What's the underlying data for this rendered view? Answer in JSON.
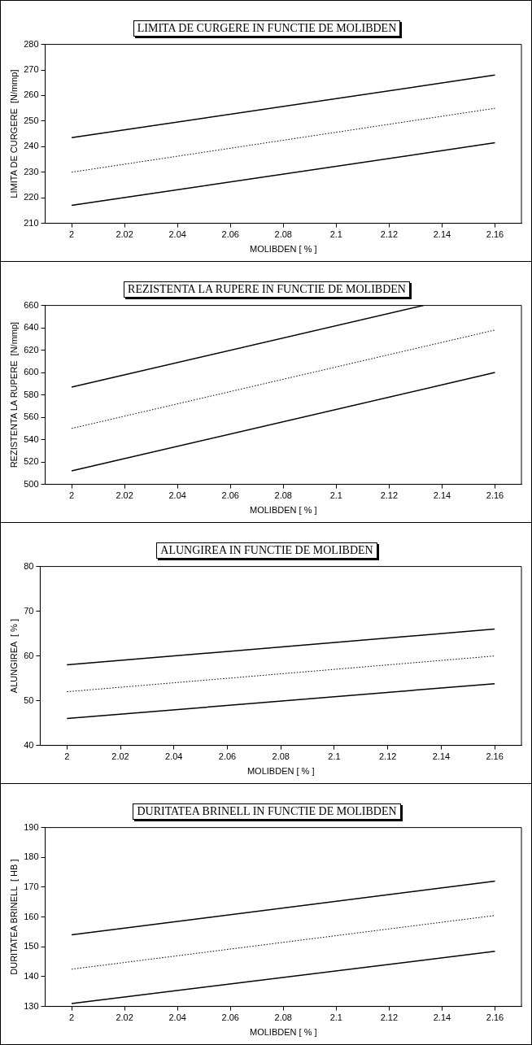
{
  "chart_data": [
    {
      "type": "line",
      "title": "LIMITA DE CURGERE IN FUNCTIE DE MOLIBDEN",
      "xlabel": "MOLIBDEN [ % ]",
      "ylabel": "LIMITA DE CURGERE  [N/mmp]",
      "xlim": [
        1.99,
        2.17
      ],
      "xticks": [
        2,
        2.02,
        2.04,
        2.06,
        2.08,
        2.1,
        2.12,
        2.14,
        2.16
      ],
      "ylim": [
        210,
        280
      ],
      "yticks": [
        210,
        220,
        230,
        240,
        250,
        260,
        270,
        280
      ],
      "series": [
        {
          "color": "#000000",
          "line_style": "solid",
          "x": [
            2,
            2.16
          ],
          "values": [
            243.5,
            268
          ]
        },
        {
          "color": "#000000",
          "line_style": "dotted",
          "x": [
            2,
            2.16
          ],
          "values": [
            230,
            255
          ]
        },
        {
          "color": "#000000",
          "line_style": "solid",
          "x": [
            2,
            2.16
          ],
          "values": [
            217,
            241.5
          ]
        }
      ]
    },
    {
      "type": "line",
      "title": "REZISTENTA LA RUPERE  IN FUNCTIE DE MOLIBDEN",
      "xlabel": "MOLIBDEN [ % ]",
      "ylabel": "REZISTENTA LA RUPERE  [N/mmp]",
      "xlim": [
        1.99,
        2.17
      ],
      "xticks": [
        2,
        2.02,
        2.04,
        2.06,
        2.08,
        2.1,
        2.12,
        2.14,
        2.16
      ],
      "ylim": [
        500,
        660
      ],
      "yticks": [
        500,
        520,
        540,
        560,
        580,
        600,
        620,
        640,
        660
      ],
      "series": [
        {
          "color": "#000000",
          "line_style": "solid",
          "x": [
            2,
            2.133
          ],
          "values": [
            587,
            660
          ]
        },
        {
          "color": "#000000",
          "line_style": "dotted",
          "x": [
            2,
            2.16
          ],
          "values": [
            550,
            638
          ]
        },
        {
          "color": "#000000",
          "line_style": "solid",
          "x": [
            2,
            2.16
          ],
          "values": [
            512,
            600
          ]
        }
      ]
    },
    {
      "type": "line",
      "title": "ALUNGIREA  IN FUNCTIE DE MOLIBDEN",
      "xlabel": "MOLIBDEN [ % ]",
      "ylabel": "ALUNGIREA  [ % ]",
      "xlim": [
        1.99,
        2.17
      ],
      "xticks": [
        2,
        2.02,
        2.04,
        2.06,
        2.08,
        2.1,
        2.12,
        2.14,
        2.16
      ],
      "ylim": [
        40,
        80
      ],
      "yticks": [
        40,
        50,
        60,
        70,
        80
      ],
      "series": [
        {
          "color": "#000000",
          "line_style": "solid",
          "x": [
            2,
            2.16
          ],
          "values": [
            58,
            66
          ]
        },
        {
          "color": "#000000",
          "line_style": "dotted",
          "x": [
            2,
            2.16
          ],
          "values": [
            52,
            60
          ]
        },
        {
          "color": "#000000",
          "line_style": "solid",
          "x": [
            2,
            2.16
          ],
          "values": [
            46,
            53.8
          ]
        }
      ]
    },
    {
      "type": "line",
      "title": "DURITATEA BRINELL IN FUNCTIE DE MOLIBDEN",
      "xlabel": "MOLIBDEN [ % ]",
      "ylabel": "DURITATEA BRINELL  [ HB ]",
      "xlim": [
        1.99,
        2.17
      ],
      "xticks": [
        2,
        2.02,
        2.04,
        2.06,
        2.08,
        2.1,
        2.12,
        2.14,
        2.16
      ],
      "ylim": [
        130,
        190
      ],
      "yticks": [
        130,
        140,
        150,
        160,
        170,
        180,
        190
      ],
      "series": [
        {
          "color": "#000000",
          "line_style": "solid",
          "x": [
            2,
            2.16
          ],
          "values": [
            154,
            172
          ]
        },
        {
          "color": "#000000",
          "line_style": "dotted",
          "x": [
            2,
            2.16
          ],
          "values": [
            142.5,
            160.5
          ]
        },
        {
          "color": "#000000",
          "line_style": "solid",
          "x": [
            2,
            2.16
          ],
          "values": [
            131,
            148.5
          ]
        }
      ]
    }
  ]
}
